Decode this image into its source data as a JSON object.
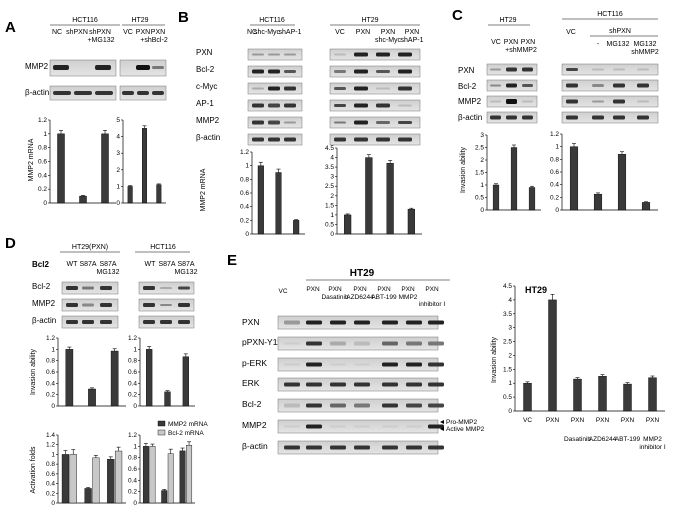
{
  "panels": {
    "a": "A",
    "b": "B",
    "c": "C",
    "d": "D",
    "e": "E"
  },
  "A": {
    "left_cell": "HCT116",
    "right_cell": "HT29",
    "left_lanes": [
      "NC",
      "shPXN",
      "shPXN"
    ],
    "left_lane_sub": "+MG132",
    "right_lanes": [
      "VC",
      "PXN",
      "PXN"
    ],
    "right_lane_sub": "+shBcl-2",
    "blots": [
      "MMP2",
      "β-actin"
    ],
    "ylabel": "MMP2 mRNA"
  },
  "B": {
    "left_cell": "HCT116",
    "right_cell": "HT29",
    "left_lanes": [
      "NC",
      "shc-Myc",
      "shAP-1"
    ],
    "right_lanes": [
      "VC",
      "PXN",
      "PXN",
      "PXN"
    ],
    "right_lane_sub": [
      "",
      "",
      "shc-Myc",
      "shAP-1"
    ],
    "blots": [
      "PXN",
      "Bcl-2",
      "c-Myc",
      "AP-1",
      "MMP2",
      "β-actin"
    ],
    "ylabel": "MMP2 mRNA"
  },
  "C": {
    "left_cell": "HT29",
    "right_cell": "HCT116",
    "left_lanes": [
      "VC",
      "PXN",
      "PXN"
    ],
    "left_lane_sub": "+shMMP2",
    "right_group": "shPXN",
    "right_lanes": [
      "VC",
      "-",
      "MG132",
      "MG132"
    ],
    "right_lane_sub": "shMMP2",
    "blots": [
      "PXN",
      "Bcl-2",
      "MMP2",
      "β-actin"
    ],
    "ylabel": "Invasion ability"
  },
  "D": {
    "left_cell": "HT29(PXN)",
    "right_cell": "HCT116",
    "left_lanes": [
      "WT",
      "S87A",
      "S87A"
    ],
    "right_lanes": [
      "WT",
      "S87A",
      "S87A"
    ],
    "lane_sub": "MG132",
    "blots": [
      "Bcl2",
      "Bcl-2",
      "MMP2",
      "β-actin"
    ],
    "ylabel_top": "Invasion ability",
    "ylabel_bottom": "Activation folds",
    "legend": [
      "MMP2 mRNA",
      "Bcl-2 mRNA"
    ]
  },
  "E": {
    "cell": "HT29",
    "lanes_top": [
      "VC",
      "PXN",
      "PXN",
      "PXN",
      "PXN",
      "PXN",
      "PXN"
    ],
    "lanes_sub": [
      "",
      "",
      "Dasatinib",
      "AZD6244",
      "ABT-199",
      "MMP2",
      "inhibitor I"
    ],
    "blots": [
      "PXN",
      "pPXN-Y118",
      "p-ERK",
      "ERK",
      "Bcl-2",
      "MMP2",
      "β-actin"
    ],
    "mmp2_notes": [
      "Pro-MMP2",
      "Active MMP2"
    ],
    "chart_title": "HT29",
    "ylabel": "Invasion ability",
    "xcats": [
      "VC",
      "PXN",
      "PXN",
      "PXN",
      "PXN",
      "PXN"
    ],
    "xcats_sub": [
      "",
      "",
      "Dasatinib",
      "AZD6244",
      "ABT-199",
      "MMP2"
    ],
    "xcats_sub2": [
      "",
      "",
      "",
      "",
      "",
      "inhibitor I"
    ]
  },
  "chart_data": [
    {
      "id": "A-left",
      "type": "bar",
      "ylabel": "MMP2 mRNA",
      "ylim": [
        0,
        1.2
      ],
      "yticks": [
        0,
        0.2,
        0.4,
        0.6,
        0.8,
        1,
        1.2
      ],
      "values": [
        1.0,
        0.1,
        1.0
      ],
      "err": [
        0.05,
        0.01,
        0.05
      ]
    },
    {
      "id": "A-right",
      "type": "bar",
      "ylim": [
        0,
        5
      ],
      "yticks": [
        0,
        1,
        2,
        3,
        4,
        5
      ],
      "values": [
        1.0,
        4.5,
        1.1
      ],
      "err": [
        0.05,
        0.15,
        0.05
      ]
    },
    {
      "id": "B-left",
      "type": "bar",
      "ylabel": "MMP2 mRNA",
      "ylim": [
        0,
        1.2
      ],
      "yticks": [
        0,
        0.2,
        0.4,
        0.6,
        0.8,
        1,
        1.2
      ],
      "values": [
        1.0,
        0.9,
        0.2
      ],
      "err": [
        0.05,
        0.05,
        0.01
      ]
    },
    {
      "id": "B-right",
      "type": "bar",
      "ylim": [
        0,
        4.5
      ],
      "yticks": [
        0,
        0.5,
        1,
        1.5,
        2,
        2.5,
        3,
        3.5,
        4,
        4.5
      ],
      "values": [
        1.0,
        4.0,
        3.7,
        1.3
      ],
      "err": [
        0.05,
        0.15,
        0.15,
        0.05
      ]
    },
    {
      "id": "C-left",
      "type": "bar",
      "ylabel": "Invasion ability",
      "ylim": [
        0,
        3
      ],
      "yticks": [
        0,
        0.5,
        1,
        1.5,
        2,
        2.5,
        3
      ],
      "values": [
        1.0,
        2.5,
        0.9
      ],
      "err": [
        0.05,
        0.1,
        0.05
      ]
    },
    {
      "id": "C-right",
      "type": "bar",
      "ylim": [
        0,
        1.2
      ],
      "yticks": [
        0,
        0.2,
        0.4,
        0.6,
        0.8,
        1,
        1.2
      ],
      "values": [
        1.0,
        0.25,
        0.88,
        0.12
      ],
      "err": [
        0.05,
        0.02,
        0.04,
        0.01
      ]
    },
    {
      "id": "D-inv-left",
      "type": "bar",
      "ylabel": "Invasion ability",
      "ylim": [
        0,
        1.2
      ],
      "yticks": [
        0,
        0.2,
        0.4,
        0.6,
        0.8,
        1,
        1.2
      ],
      "values": [
        1.0,
        0.3,
        0.97
      ],
      "err": [
        0.04,
        0.02,
        0.04
      ]
    },
    {
      "id": "D-inv-right",
      "type": "bar",
      "ylim": [
        0,
        1.2
      ],
      "yticks": [
        0,
        0.2,
        0.4,
        0.6,
        0.8,
        1,
        1.2
      ],
      "values": [
        1.0,
        0.25,
        0.87
      ],
      "err": [
        0.05,
        0.02,
        0.05
      ]
    },
    {
      "id": "D-act-left",
      "type": "bar",
      "ylabel": "Activation folds",
      "ylim": [
        0,
        1.4
      ],
      "yticks": [
        0,
        0.2,
        0.4,
        0.6,
        0.8,
        1,
        1.2,
        1.4
      ],
      "series": [
        {
          "name": "MMP2 mRNA",
          "values": [
            1.0,
            0.3,
            0.9
          ],
          "err": [
            0.08,
            0.02,
            0.05
          ]
        },
        {
          "name": "Bcl-2 mRNA",
          "values": [
            1.0,
            0.93,
            1.07
          ],
          "err": [
            0.1,
            0.05,
            0.08
          ]
        }
      ]
    },
    {
      "id": "D-act-right",
      "type": "bar",
      "ylim": [
        0,
        1.2
      ],
      "yticks": [
        0,
        0.2,
        0.4,
        0.6,
        0.8,
        1,
        1.2
      ],
      "series": [
        {
          "name": "MMP2 mRNA",
          "values": [
            1.0,
            0.22,
            0.92
          ],
          "err": [
            0.05,
            0.02,
            0.05
          ]
        },
        {
          "name": "Bcl-2 mRNA",
          "values": [
            1.0,
            0.87,
            1.02
          ],
          "err": [
            0.04,
            0.08,
            0.06
          ]
        }
      ]
    },
    {
      "id": "E-chart",
      "type": "bar",
      "title": "HT29",
      "ylabel": "Invasion ability",
      "ylim": [
        0,
        4.5
      ],
      "yticks": [
        0,
        0.5,
        1,
        1.5,
        2,
        2.5,
        3,
        3.5,
        4,
        4.5
      ],
      "categories": [
        "VC",
        "PXN",
        "PXN Dasatinib",
        "PXN AZD6244",
        "PXN ABT-199",
        "PXN MMP2 inhibitor I"
      ],
      "values": [
        1.0,
        4.0,
        1.15,
        1.25,
        0.97,
        1.2
      ],
      "err": [
        0.05,
        0.2,
        0.05,
        0.06,
        0.05,
        0.06
      ]
    }
  ],
  "colors": {
    "bar": "#3a3a3a",
    "bar_light": "#c8c8c8",
    "axis": "#000000"
  }
}
